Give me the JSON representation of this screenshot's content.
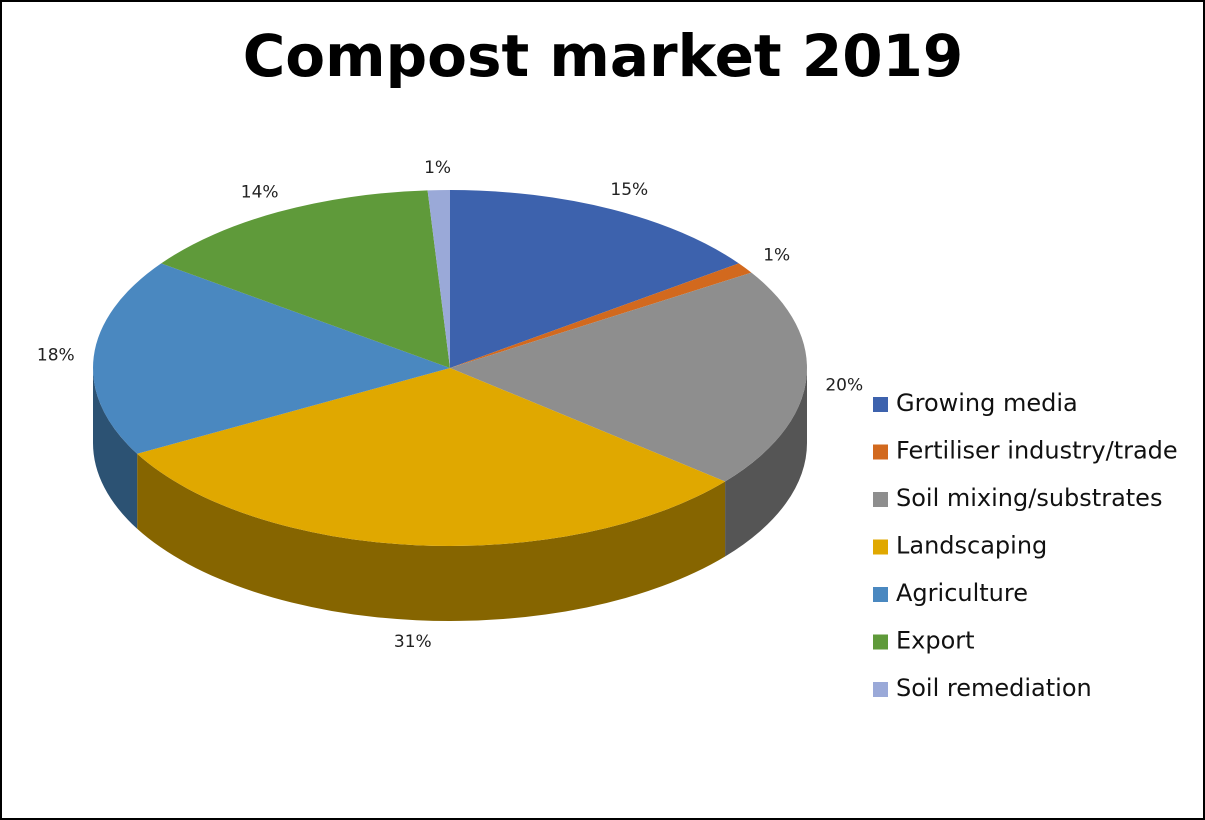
{
  "chart_data": {
    "type": "pie",
    "title": "Compost market 2019",
    "categories": [
      "Growing media",
      "Fertiliser industry/trade",
      "Soil mixing/substrates",
      "Landscaping",
      "Agriculture",
      "Export",
      "Soil remediation"
    ],
    "values": [
      15,
      1,
      20,
      31,
      18,
      14,
      1
    ],
    "value_labels": [
      "15%",
      "1%",
      "20%",
      "31%",
      "18%",
      "14%",
      "1%"
    ],
    "colors": [
      "#3d62ad",
      "#d2691e",
      "#8e8e8e",
      "#e0a800",
      "#4a88c0",
      "#5f9a3a",
      "#9aa9d8"
    ],
    "legend": "right"
  }
}
